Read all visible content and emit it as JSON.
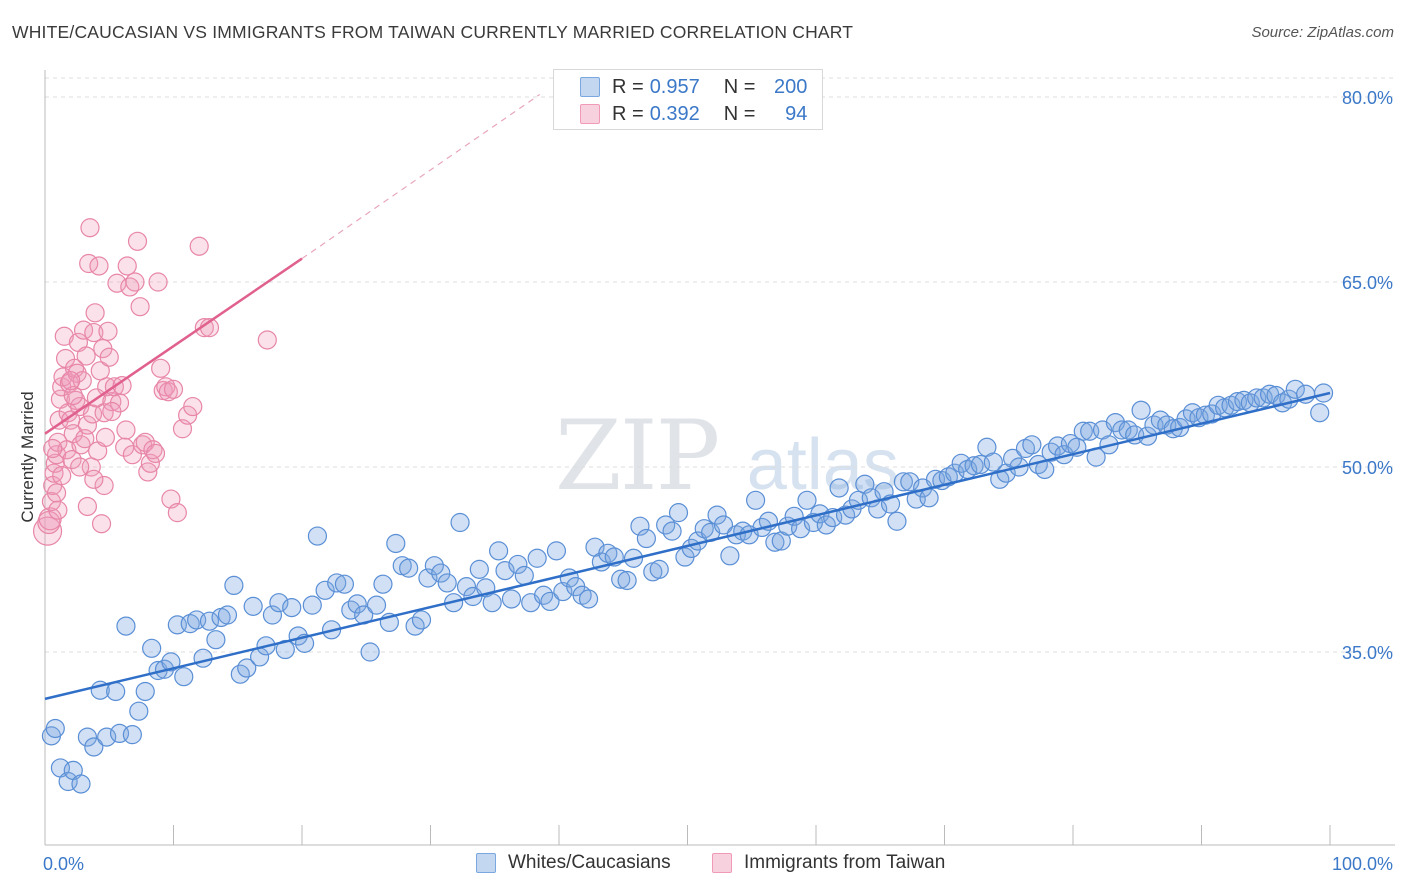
{
  "header": {
    "title": "WHITE/CAUCASIAN VS IMMIGRANTS FROM TAIWAN CURRENTLY MARRIED CORRELATION CHART",
    "source": "Source: ZipAtlas.com"
  },
  "watermark": {
    "zip": "ZIP",
    "atlas": "atlas"
  },
  "legend": {
    "rows": [
      {
        "r_label": "R =",
        "r_value": "0.957",
        "n_label": "N =",
        "n_value": "200",
        "color": "#7aa7e0"
      },
      {
        "r_label": "R =",
        "r_value": "0.392",
        "n_label": "N =",
        "n_value": "94",
        "color": "#f09ab8"
      }
    ]
  },
  "bottom_legend": [
    {
      "label": "Whites/Caucasians",
      "color": "#7aa7e0"
    },
    {
      "label": "Immigrants from Taiwan",
      "color": "#f09ab8"
    }
  ],
  "colors": {
    "blue_fill": "rgba(122,167,224,0.35)",
    "blue_stroke": "#5a8fd6",
    "blue_line": "#2f6fc8",
    "pink_fill": "rgba(240,154,184,0.30)",
    "pink_stroke": "#e886a8",
    "pink_line": "#e0608e",
    "grid": "#dddddd",
    "axis_text": "#3b78c8"
  },
  "chart_data": {
    "type": "scatter",
    "title": "WHITE/CAUCASIAN VS IMMIGRANTS FROM TAIWAN CURRENTLY MARRIED CORRELATION CHART",
    "xlabel": "",
    "ylabel": "Currently Married",
    "xlim": [
      0,
      100
    ],
    "ylim": [
      20,
      83
    ],
    "x_tick_labels": [
      "0.0%",
      "100.0%"
    ],
    "y_ticks": [
      35,
      50,
      65,
      80
    ],
    "y_tick_labels": [
      "35.0%",
      "50.0%",
      "65.0%",
      "80.0%"
    ],
    "grid": true,
    "legend_position": "top-center",
    "series": [
      {
        "name": "Whites/Caucasians",
        "R": 0.957,
        "N": 200,
        "trendline": {
          "x": [
            0,
            100
          ],
          "y": [
            31.2,
            56.0
          ]
        },
        "points": [
          [
            0.5,
            28.2
          ],
          [
            0.8,
            28.8
          ],
          [
            1.2,
            25.6
          ],
          [
            1.8,
            24.5
          ],
          [
            2.2,
            25.4
          ],
          [
            2.8,
            24.3
          ],
          [
            3.3,
            28.1
          ],
          [
            3.8,
            27.3
          ],
          [
            4.3,
            31.9
          ],
          [
            4.8,
            28.1
          ],
          [
            5.5,
            31.8
          ],
          [
            5.8,
            28.4
          ],
          [
            6.3,
            37.1
          ],
          [
            6.8,
            28.3
          ],
          [
            7.3,
            30.2
          ],
          [
            7.8,
            31.8
          ],
          [
            8.3,
            35.3
          ],
          [
            8.8,
            33.5
          ],
          [
            9.3,
            33.6
          ],
          [
            9.8,
            34.2
          ],
          [
            10.3,
            37.2
          ],
          [
            10.8,
            33.0
          ],
          [
            11.3,
            37.3
          ],
          [
            11.8,
            37.6
          ],
          [
            12.3,
            34.5
          ],
          [
            12.8,
            37.5
          ],
          [
            13.3,
            36.0
          ],
          [
            13.7,
            37.8
          ],
          [
            14.2,
            38.0
          ],
          [
            14.7,
            40.4
          ],
          [
            15.2,
            33.2
          ],
          [
            15.7,
            33.7
          ],
          [
            16.2,
            38.7
          ],
          [
            16.7,
            34.6
          ],
          [
            17.2,
            35.5
          ],
          [
            17.7,
            38.0
          ],
          [
            18.2,
            39.0
          ],
          [
            18.7,
            35.2
          ],
          [
            19.2,
            38.6
          ],
          [
            19.7,
            36.3
          ],
          [
            20.2,
            35.7
          ],
          [
            20.8,
            38.8
          ],
          [
            21.2,
            44.4
          ],
          [
            21.8,
            40.0
          ],
          [
            22.3,
            36.8
          ],
          [
            22.7,
            40.6
          ],
          [
            23.3,
            40.5
          ],
          [
            23.8,
            38.4
          ],
          [
            24.3,
            38.9
          ],
          [
            24.8,
            38.0
          ],
          [
            25.3,
            35.0
          ],
          [
            25.8,
            38.8
          ],
          [
            26.3,
            40.5
          ],
          [
            26.8,
            37.4
          ],
          [
            27.3,
            43.8
          ],
          [
            27.8,
            42.0
          ],
          [
            28.3,
            41.8
          ],
          [
            28.8,
            37.1
          ],
          [
            29.3,
            37.6
          ],
          [
            29.8,
            41.0
          ],
          [
            30.3,
            42.0
          ],
          [
            30.8,
            41.4
          ],
          [
            31.3,
            40.6
          ],
          [
            31.8,
            39.0
          ],
          [
            32.3,
            45.5
          ],
          [
            32.8,
            40.3
          ],
          [
            33.3,
            39.5
          ],
          [
            33.8,
            41.7
          ],
          [
            34.3,
            40.2
          ],
          [
            34.8,
            39.0
          ],
          [
            35.3,
            43.2
          ],
          [
            35.8,
            41.6
          ],
          [
            36.3,
            39.3
          ],
          [
            36.8,
            42.1
          ],
          [
            37.3,
            41.2
          ],
          [
            37.8,
            39.0
          ],
          [
            38.3,
            42.6
          ],
          [
            38.8,
            39.6
          ],
          [
            39.3,
            39.1
          ],
          [
            39.8,
            43.2
          ],
          [
            40.3,
            39.9
          ],
          [
            40.8,
            41.0
          ],
          [
            41.3,
            40.3
          ],
          [
            41.8,
            39.6
          ],
          [
            42.3,
            39.3
          ],
          [
            42.8,
            43.5
          ],
          [
            43.3,
            42.3
          ],
          [
            43.8,
            43.0
          ],
          [
            44.3,
            42.7
          ],
          [
            44.8,
            40.9
          ],
          [
            45.3,
            40.8
          ],
          [
            45.8,
            42.6
          ],
          [
            46.3,
            45.2
          ],
          [
            46.8,
            44.2
          ],
          [
            47.3,
            41.5
          ],
          [
            47.8,
            41.7
          ],
          [
            48.3,
            45.3
          ],
          [
            48.8,
            44.8
          ],
          [
            49.3,
            46.3
          ],
          [
            49.8,
            42.7
          ],
          [
            50.3,
            43.4
          ],
          [
            50.8,
            44.0
          ],
          [
            51.3,
            45.0
          ],
          [
            51.8,
            44.7
          ],
          [
            52.3,
            46.1
          ],
          [
            52.8,
            45.3
          ],
          [
            53.3,
            42.8
          ],
          [
            53.8,
            44.5
          ],
          [
            54.3,
            44.8
          ],
          [
            54.8,
            44.5
          ],
          [
            55.3,
            47.3
          ],
          [
            55.8,
            45.1
          ],
          [
            56.3,
            45.6
          ],
          [
            56.8,
            43.9
          ],
          [
            57.3,
            44.0
          ],
          [
            57.8,
            45.2
          ],
          [
            58.3,
            46.0
          ],
          [
            58.8,
            45.0
          ],
          [
            59.3,
            47.3
          ],
          [
            59.8,
            45.5
          ],
          [
            60.3,
            46.2
          ],
          [
            60.8,
            45.3
          ],
          [
            61.3,
            45.9
          ],
          [
            61.8,
            48.3
          ],
          [
            62.3,
            46.1
          ],
          [
            62.8,
            46.6
          ],
          [
            63.3,
            47.3
          ],
          [
            63.8,
            48.6
          ],
          [
            64.3,
            47.5
          ],
          [
            64.8,
            46.6
          ],
          [
            65.3,
            48.0
          ],
          [
            65.8,
            47.0
          ],
          [
            66.3,
            45.6
          ],
          [
            66.8,
            48.8
          ],
          [
            67.3,
            48.8
          ],
          [
            67.8,
            47.4
          ],
          [
            68.3,
            48.3
          ],
          [
            68.8,
            47.5
          ],
          [
            69.3,
            49.0
          ],
          [
            69.8,
            48.9
          ],
          [
            70.3,
            49.2
          ],
          [
            70.8,
            49.5
          ],
          [
            71.3,
            50.3
          ],
          [
            71.8,
            49.8
          ],
          [
            72.3,
            50.1
          ],
          [
            72.8,
            50.2
          ],
          [
            73.3,
            51.6
          ],
          [
            73.8,
            50.4
          ],
          [
            74.3,
            49.0
          ],
          [
            74.8,
            49.5
          ],
          [
            75.3,
            50.7
          ],
          [
            75.8,
            50.0
          ],
          [
            76.3,
            51.5
          ],
          [
            76.8,
            51.8
          ],
          [
            77.3,
            50.2
          ],
          [
            77.8,
            49.8
          ],
          [
            78.3,
            51.2
          ],
          [
            78.8,
            51.7
          ],
          [
            79.3,
            51.0
          ],
          [
            79.8,
            51.9
          ],
          [
            80.3,
            51.6
          ],
          [
            80.8,
            52.9
          ],
          [
            81.3,
            52.9
          ],
          [
            81.8,
            50.8
          ],
          [
            82.3,
            53.0
          ],
          [
            82.8,
            51.8
          ],
          [
            83.3,
            53.6
          ],
          [
            83.8,
            53.0
          ],
          [
            84.3,
            53.0
          ],
          [
            84.8,
            52.6
          ],
          [
            85.3,
            54.6
          ],
          [
            85.8,
            52.5
          ],
          [
            86.3,
            53.4
          ],
          [
            86.8,
            53.8
          ],
          [
            87.3,
            53.4
          ],
          [
            87.8,
            53.1
          ],
          [
            88.3,
            53.2
          ],
          [
            88.8,
            53.9
          ],
          [
            89.3,
            54.4
          ],
          [
            89.8,
            54.0
          ],
          [
            90.3,
            54.2
          ],
          [
            90.8,
            54.3
          ],
          [
            91.3,
            55.0
          ],
          [
            91.8,
            54.8
          ],
          [
            92.3,
            55.0
          ],
          [
            92.8,
            55.3
          ],
          [
            93.3,
            55.4
          ],
          [
            93.8,
            55.2
          ],
          [
            94.3,
            55.6
          ],
          [
            94.8,
            55.6
          ],
          [
            95.3,
            55.9
          ],
          [
            95.8,
            55.8
          ],
          [
            96.3,
            55.2
          ],
          [
            96.8,
            55.5
          ],
          [
            97.3,
            56.3
          ],
          [
            98.1,
            55.9
          ],
          [
            99.2,
            54.4
          ],
          [
            99.5,
            56.0
          ]
        ]
      },
      {
        "name": "Immigrants from Taiwan",
        "R": 0.392,
        "N": 94,
        "trendline": {
          "x": [
            0,
            20
          ],
          "y": [
            52.7,
            66.9
          ],
          "dashed_extension": {
            "x": [
              20,
              38.5
            ],
            "y": [
              66.9,
              80.2
            ]
          }
        },
        "points": [
          [
            0.2,
            44.8
          ],
          [
            0.3,
            45.5
          ],
          [
            0.4,
            45.8
          ],
          [
            0.5,
            47.2
          ],
          [
            0.6,
            48.5
          ],
          [
            0.7,
            49.5
          ],
          [
            0.8,
            50.3
          ],
          [
            0.9,
            51.0
          ],
          [
            1.0,
            52.0
          ],
          [
            1.1,
            53.8
          ],
          [
            1.2,
            55.5
          ],
          [
            1.3,
            56.5
          ],
          [
            1.4,
            57.3
          ],
          [
            1.5,
            60.6
          ],
          [
            1.6,
            58.8
          ],
          [
            1.7,
            51.4
          ],
          [
            1.8,
            54.4
          ],
          [
            1.9,
            56.8
          ],
          [
            2.0,
            53.8
          ],
          [
            2.1,
            50.6
          ],
          [
            2.2,
            52.7
          ],
          [
            2.3,
            58.0
          ],
          [
            2.4,
            55.4
          ],
          [
            2.5,
            57.6
          ],
          [
            2.6,
            60.1
          ],
          [
            2.7,
            54.9
          ],
          [
            2.8,
            51.8
          ],
          [
            2.9,
            57.0
          ],
          [
            3.0,
            61.1
          ],
          [
            3.1,
            52.3
          ],
          [
            3.2,
            59.0
          ],
          [
            3.3,
            53.4
          ],
          [
            3.4,
            66.5
          ],
          [
            3.5,
            69.4
          ],
          [
            3.6,
            50.0
          ],
          [
            3.7,
            54.3
          ],
          [
            3.8,
            60.9
          ],
          [
            3.9,
            62.5
          ],
          [
            4.0,
            55.6
          ],
          [
            4.1,
            51.3
          ],
          [
            4.2,
            66.3
          ],
          [
            4.3,
            57.8
          ],
          [
            4.4,
            45.4
          ],
          [
            4.5,
            59.6
          ],
          [
            4.6,
            54.4
          ],
          [
            4.7,
            52.4
          ],
          [
            4.8,
            56.5
          ],
          [
            4.9,
            61.0
          ],
          [
            5.0,
            58.9
          ],
          [
            5.2,
            55.3
          ],
          [
            5.4,
            56.5
          ],
          [
            5.6,
            64.9
          ],
          [
            5.8,
            55.2
          ],
          [
            6.0,
            56.6
          ],
          [
            6.2,
            51.6
          ],
          [
            6.4,
            66.3
          ],
          [
            6.6,
            64.6
          ],
          [
            6.8,
            51.0
          ],
          [
            7.0,
            65.0
          ],
          [
            7.2,
            68.3
          ],
          [
            7.4,
            63.0
          ],
          [
            7.6,
            51.8
          ],
          [
            7.8,
            52.0
          ],
          [
            8.0,
            49.6
          ],
          [
            8.2,
            50.3
          ],
          [
            8.4,
            51.4
          ],
          [
            8.6,
            51.1
          ],
          [
            8.8,
            65.0
          ],
          [
            9.0,
            58.0
          ],
          [
            9.2,
            56.2
          ],
          [
            9.4,
            56.5
          ],
          [
            9.6,
            56.1
          ],
          [
            9.8,
            47.4
          ],
          [
            10.0,
            56.3
          ],
          [
            10.3,
            46.3
          ],
          [
            10.7,
            53.1
          ],
          [
            11.1,
            54.2
          ],
          [
            11.5,
            54.9
          ],
          [
            12.0,
            67.9
          ],
          [
            12.4,
            61.3
          ],
          [
            12.8,
            61.3
          ],
          [
            17.3,
            60.3
          ],
          [
            0.9,
            47.9
          ],
          [
            1.3,
            49.3
          ],
          [
            2.2,
            55.8
          ],
          [
            2.7,
            50.0
          ],
          [
            3.3,
            46.8
          ],
          [
            4.6,
            48.5
          ],
          [
            5.2,
            54.5
          ],
          [
            6.3,
            53.0
          ],
          [
            2.0,
            57.0
          ],
          [
            1.0,
            46.5
          ],
          [
            3.8,
            49.0
          ],
          [
            0.6,
            51.5
          ]
        ]
      }
    ]
  }
}
